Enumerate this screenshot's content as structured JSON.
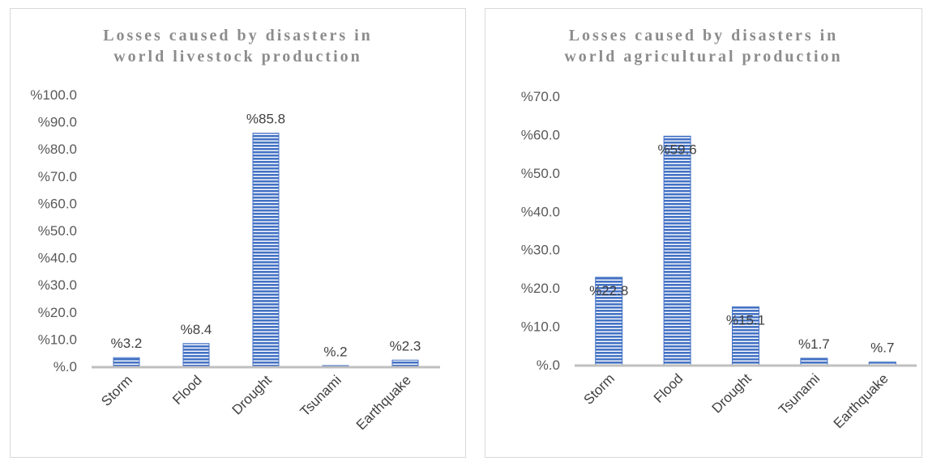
{
  "chart_data": [
    {
      "type": "bar",
      "title_lines": [
        "Losses caused by disasters in",
        "world livestock production"
      ],
      "categories": [
        "Storm",
        "Flood",
        "Drought",
        "Tsunami",
        "Earthquake"
      ],
      "values": [
        3.2,
        8.4,
        85.8,
        0.2,
        2.3
      ],
      "data_labels": [
        "%3.2",
        "%8.4",
        "%85.8",
        "%.2",
        "%2.3"
      ],
      "ylim": [
        0,
        100
      ],
      "yticks": [
        0,
        10,
        20,
        30,
        40,
        50,
        60,
        70,
        80,
        90,
        100
      ],
      "ytick_labels": [
        "%.0",
        "%10.0",
        "%20.0",
        "%30.0",
        "%40.0",
        "%50.0",
        "%60.0",
        "%70.0",
        "%80.0",
        "%90.0",
        "%100.0"
      ],
      "grid": false,
      "bar_color": "#4472c4",
      "bar_pattern": "horizontal-stripes"
    },
    {
      "type": "bar",
      "title_lines": [
        "Losses caused by disasters in",
        "world agricultural production"
      ],
      "categories": [
        "Storm",
        "Flood",
        "Drought",
        "Tsunami",
        "Earthquake"
      ],
      "values": [
        22.8,
        59.6,
        15.1,
        1.7,
        0.7
      ],
      "data_labels": [
        "%22.8",
        "%59.6",
        "%15.1",
        "%1.7",
        "%.7"
      ],
      "ylim": [
        0,
        70
      ],
      "yticks": [
        0,
        10,
        20,
        30,
        40,
        50,
        60,
        70
      ],
      "ytick_labels": [
        "%.0",
        "%10.0",
        "%20.0",
        "%30.0",
        "%40.0",
        "%50.0",
        "%60.0",
        "%70.0"
      ],
      "grid": false,
      "bar_color": "#4472c4",
      "bar_pattern": "horizontal-stripes"
    }
  ]
}
